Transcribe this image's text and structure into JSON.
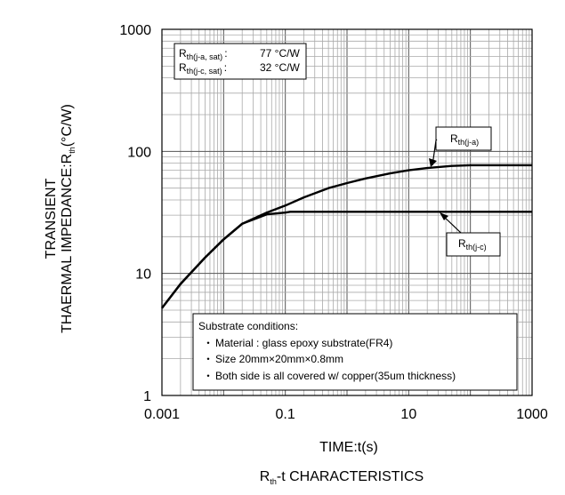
{
  "chart_data": {
    "type": "line",
    "title": "R",
    "title_sub": "th",
    "title_rest": "-t CHARACTERISTICS",
    "xlabel": "TIME:t(s)",
    "ylabel_line1": "TRANSIENT",
    "ylabel_line2_main": "THAERMAL IMPEDANCE:R",
    "ylabel_line2_sub": "th",
    "ylabel_line2_end": "(°C/W)",
    "x_scale": "log",
    "y_scale": "log",
    "xlim": [
      0.001,
      1000
    ],
    "ylim": [
      1,
      1000
    ],
    "x_ticks": [
      "0.001",
      "0.1",
      "10",
      "1000"
    ],
    "x_tick_values": [
      0.001,
      0.1,
      10,
      1000
    ],
    "y_ticks": [
      "1",
      "10",
      "100",
      "1000"
    ],
    "y_tick_values": [
      1,
      10,
      100,
      1000
    ],
    "grid": true,
    "series": [
      {
        "name": "Rth(j-a)",
        "label_main": "R",
        "label_sub": "th(j-a)",
        "x": [
          0.001,
          0.002,
          0.005,
          0.01,
          0.02,
          0.05,
          0.1,
          0.2,
          0.5,
          1,
          2,
          5,
          10,
          20,
          50,
          100,
          200,
          500,
          1000
        ],
        "y": [
          5.2,
          8.2,
          13.5,
          19,
          25.5,
          31.5,
          36,
          42,
          50,
          55,
          60,
          66,
          70,
          73,
          76,
          77,
          77,
          77,
          77
        ]
      },
      {
        "name": "Rth(j-c)",
        "label_main": "R",
        "label_sub": "th(j-c)",
        "x": [
          0.001,
          0.002,
          0.005,
          0.01,
          0.02,
          0.05,
          0.1,
          0.12,
          0.2,
          1,
          10,
          100,
          1000
        ],
        "y": [
          5.2,
          8.2,
          13.5,
          19,
          25.5,
          30.5,
          31.5,
          32,
          32,
          32,
          32,
          32,
          32
        ]
      }
    ],
    "sat_box": [
      {
        "main": "R",
        "sub": "th(j-a, sat)",
        "sep": ":",
        "value": "77 °C/W"
      },
      {
        "main": "R",
        "sub": "th(j-c, sat)",
        "sep": ":",
        "value": "32 °C/W"
      }
    ],
    "conditions": {
      "heading": "Substrate conditions:",
      "items": [
        "Material : glass epoxy substrate(FR4)",
        "Size 20mm×20mm×0.8mm",
        "Both side is all covered w/ copper(35um thickness)"
      ]
    }
  }
}
